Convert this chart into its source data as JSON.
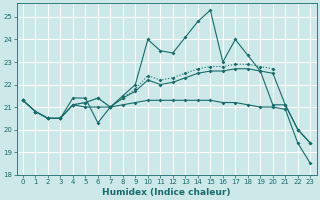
{
  "xlabel": "Humidex (Indice chaleur)",
  "background_color": "#cce8e8",
  "grid_color": "#ffffff",
  "line_color": "#1a6b6b",
  "xlim": [
    -0.5,
    23.5
  ],
  "ylim": [
    18,
    25.6
  ],
  "yticks": [
    18,
    19,
    20,
    21,
    22,
    23,
    24,
    25
  ],
  "xticks": [
    0,
    1,
    2,
    3,
    4,
    5,
    6,
    7,
    8,
    9,
    10,
    11,
    12,
    13,
    14,
    15,
    16,
    17,
    18,
    19,
    20,
    21,
    22,
    23
  ],
  "line1_x": [
    0,
    1,
    2,
    3,
    4,
    5,
    6,
    7,
    8,
    9,
    10,
    11,
    12,
    13,
    14,
    15,
    16,
    17,
    18,
    19,
    20,
    21,
    22,
    23
  ],
  "line1_y": [
    21.3,
    20.8,
    20.5,
    20.5,
    21.4,
    21.4,
    20.3,
    21.0,
    21.5,
    22.0,
    24.0,
    23.5,
    23.4,
    24.1,
    24.8,
    25.3,
    23.0,
    24.0,
    23.3,
    22.6,
    21.1,
    21.1,
    20.0,
    19.4
  ],
  "line1_style": "-",
  "line2_x": [
    0,
    1,
    2,
    3,
    4,
    5,
    6,
    7,
    8,
    9,
    10,
    11,
    12,
    13,
    14,
    15,
    16,
    17,
    18,
    19,
    20,
    21,
    22,
    23
  ],
  "line2_y": [
    21.3,
    20.8,
    20.5,
    20.5,
    21.1,
    21.2,
    21.4,
    21.0,
    21.4,
    21.7,
    22.2,
    22.0,
    22.1,
    22.3,
    22.5,
    22.6,
    22.6,
    22.7,
    22.7,
    22.6,
    22.5,
    21.1,
    20.0,
    19.4
  ],
  "line2_style": "-",
  "line3_x": [
    0,
    1,
    2,
    3,
    4,
    5,
    6,
    7,
    8,
    9,
    10,
    11,
    12,
    13,
    14,
    15,
    16,
    17,
    18,
    19,
    20,
    21,
    22,
    23
  ],
  "line3_y": [
    21.3,
    20.8,
    20.5,
    20.5,
    21.1,
    21.0,
    21.0,
    21.0,
    21.1,
    21.2,
    21.3,
    21.3,
    21.3,
    21.3,
    21.3,
    21.3,
    21.2,
    21.2,
    21.1,
    21.0,
    21.0,
    20.9,
    19.4,
    18.5
  ],
  "line3_style": "-",
  "line4_x": [
    0,
    1,
    2,
    3,
    4,
    5,
    6,
    7,
    8,
    9,
    10,
    11,
    12,
    13,
    14,
    15,
    16,
    17,
    18,
    19,
    20
  ],
  "line4_y": [
    21.3,
    20.8,
    20.5,
    20.5,
    21.1,
    21.2,
    21.4,
    21.0,
    21.4,
    21.8,
    22.4,
    22.2,
    22.3,
    22.5,
    22.7,
    22.8,
    22.8,
    22.9,
    22.9,
    22.8,
    22.7
  ],
  "line4_style": ":"
}
